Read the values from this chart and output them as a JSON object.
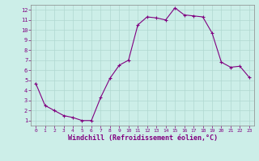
{
  "x": [
    0,
    1,
    2,
    3,
    4,
    5,
    6,
    7,
    8,
    9,
    10,
    11,
    12,
    13,
    14,
    15,
    16,
    17,
    18,
    19,
    20,
    21,
    22,
    23
  ],
  "y": [
    4.7,
    2.5,
    2.0,
    1.5,
    1.3,
    1.0,
    1.0,
    3.3,
    5.2,
    6.5,
    7.0,
    10.5,
    11.3,
    11.2,
    11.0,
    12.2,
    11.5,
    11.4,
    11.3,
    9.7,
    6.8,
    6.3,
    6.4,
    5.3
  ],
  "line_color": "#800080",
  "marker": "+",
  "marker_size": 3,
  "xlabel": "Windchill (Refroidissement éolien,°C)",
  "xlim_min": -0.5,
  "xlim_max": 23.5,
  "ylim_min": 0.5,
  "ylim_max": 12.5,
  "xticks": [
    0,
    1,
    2,
    3,
    4,
    5,
    6,
    7,
    8,
    9,
    10,
    11,
    12,
    13,
    14,
    15,
    16,
    17,
    18,
    19,
    20,
    21,
    22,
    23
  ],
  "yticks": [
    1,
    2,
    3,
    4,
    5,
    6,
    7,
    8,
    9,
    10,
    11,
    12
  ],
  "bg_color": "#cceee8",
  "grid_color": "#b0d8d0",
  "tick_color": "#800080",
  "label_color": "#800080",
  "spine_color": "#888888"
}
